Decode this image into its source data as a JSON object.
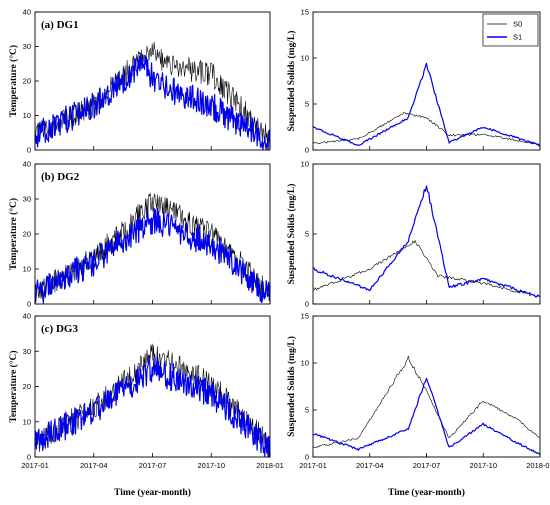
{
  "colors": {
    "S0": "#000000",
    "S1": "#0000ee"
  },
  "x_tick_labels": [
    "2017-01",
    "2017-04",
    "2017-07",
    "2017-10",
    "2018-01"
  ],
  "x_axis_label": "Time (year-month)",
  "chart_data": [
    {
      "type": "line",
      "panel": "(a) DG1",
      "ylabel": "Temperature (°C)",
      "ylim": [
        0,
        40
      ],
      "yticks": [
        0,
        10,
        20,
        30,
        40
      ],
      "xlabel": "",
      "x_range": [
        "2017-01",
        "2018-01"
      ],
      "series": [
        {
          "name": "",
          "color": "#000000",
          "x": [
            0,
            0.25,
            0.5,
            0.55,
            0.75,
            1.0
          ],
          "values": [
            4,
            13,
            30,
            25,
            22,
            3
          ]
        },
        {
          "name": "",
          "color": "#0000ee",
          "x": [
            0,
            0.25,
            0.45,
            0.55,
            0.75,
            1.0
          ],
          "values": [
            4,
            13,
            25,
            18,
            13,
            2
          ]
        }
      ]
    },
    {
      "type": "line",
      "panel": "",
      "ylabel": "Suspended Solids (mg/L)",
      "ylim": [
        0,
        15
      ],
      "yticks": [
        0,
        5,
        10,
        15
      ],
      "xlabel": "",
      "x_range": [
        "2017-01",
        "2018-01"
      ],
      "legend": {
        "position": "top-right",
        "entries": [
          "S0",
          "S1"
        ]
      },
      "series": [
        {
          "name": "S0",
          "color": "#000000",
          "x": [
            0,
            0.2,
            0.4,
            0.5,
            0.6,
            0.75,
            1.0
          ],
          "values": [
            0.7,
            1.2,
            4.0,
            3.5,
            1.6,
            1.7,
            0.6
          ]
        },
        {
          "name": "S1",
          "color": "#0000ee",
          "x": [
            0,
            0.2,
            0.42,
            0.5,
            0.6,
            0.75,
            1.0
          ],
          "values": [
            2.5,
            0.5,
            3.5,
            9.3,
            0.8,
            2.5,
            0.5
          ]
        }
      ]
    },
    {
      "type": "line",
      "panel": "(b) DG2",
      "ylabel": "Temperature (°C)",
      "ylim": [
        0,
        40
      ],
      "yticks": [
        0,
        10,
        20,
        30,
        40
      ],
      "xlabel": "",
      "x_range": [
        "2017-01",
        "2018-01"
      ],
      "series": [
        {
          "name": "",
          "color": "#000000",
          "x": [
            0,
            0.25,
            0.5,
            0.75,
            1.0
          ],
          "values": [
            3,
            13,
            29,
            20,
            3
          ]
        },
        {
          "name": "",
          "color": "#0000ee",
          "x": [
            0,
            0.25,
            0.5,
            0.75,
            1.0
          ],
          "values": [
            3,
            12,
            24,
            17,
            2
          ]
        }
      ]
    },
    {
      "type": "line",
      "panel": "",
      "ylabel": "Suspended Solids (mg/L)",
      "ylim": [
        0,
        10
      ],
      "yticks": [
        0,
        5,
        10
      ],
      "xlabel": "",
      "x_range": [
        "2017-01",
        "2018-01"
      ],
      "series": [
        {
          "name": "",
          "color": "#000000",
          "x": [
            0,
            0.25,
            0.45,
            0.55,
            0.75,
            1.0
          ],
          "values": [
            1.0,
            2.5,
            4.5,
            2.0,
            1.5,
            0.5
          ]
        },
        {
          "name": "",
          "color": "#0000ee",
          "x": [
            0,
            0.25,
            0.42,
            0.5,
            0.6,
            0.75,
            1.0
          ],
          "values": [
            2.5,
            1.0,
            4.5,
            8.5,
            1.2,
            1.8,
            0.5
          ]
        }
      ]
    },
    {
      "type": "line",
      "panel": "(c) DG3",
      "ylabel": "Temperature (°C)",
      "ylim": [
        0,
        40
      ],
      "yticks": [
        0,
        10,
        20,
        30,
        40
      ],
      "xlabel": "Time (year-month)",
      "x_range": [
        "2017-01",
        "2018-01"
      ],
      "series": [
        {
          "name": "",
          "color": "#000000",
          "x": [
            0,
            0.25,
            0.5,
            0.75,
            1.0
          ],
          "values": [
            4,
            14,
            29,
            21,
            3
          ]
        },
        {
          "name": "",
          "color": "#0000ee",
          "x": [
            0,
            0.25,
            0.5,
            0.75,
            1.0
          ],
          "values": [
            4,
            13,
            25,
            18,
            2
          ]
        }
      ]
    },
    {
      "type": "line",
      "panel": "",
      "ylabel": "Suspended Solids (mg/L)",
      "ylim": [
        0,
        15
      ],
      "yticks": [
        0,
        5,
        10,
        15
      ],
      "xlabel": "Time (year-month)",
      "x_range": [
        "2017-01",
        "2018-01"
      ],
      "series": [
        {
          "name": "",
          "color": "#000000",
          "x": [
            0,
            0.2,
            0.42,
            0.5,
            0.6,
            0.75,
            0.9,
            1.0
          ],
          "values": [
            1.0,
            2.0,
            10.5,
            7.0,
            2.0,
            6.0,
            4.0,
            2.0
          ]
        },
        {
          "name": "",
          "color": "#0000ee",
          "x": [
            0,
            0.2,
            0.42,
            0.5,
            0.6,
            0.75,
            0.9,
            1.0
          ],
          "values": [
            2.5,
            0.8,
            3.0,
            8.5,
            1.0,
            3.5,
            1.5,
            0.3
          ]
        }
      ]
    }
  ]
}
